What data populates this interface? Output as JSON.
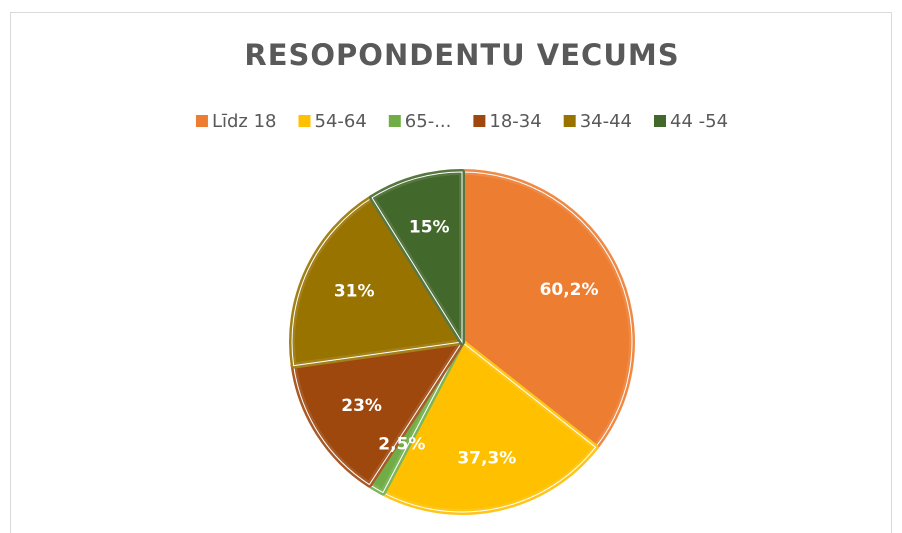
{
  "chart_data": {
    "type": "pie",
    "title": "RESOPONDENTU VECUMS",
    "categories": [
      "Līdz 18",
      "54-64",
      "65-...",
      "18-34",
      "34-44",
      "44 -54"
    ],
    "values": [
      60.2,
      37.3,
      2.5,
      23,
      31,
      15
    ],
    "value_labels": [
      "60,2%",
      "37,3%",
      "2,5%",
      "23%",
      "31%",
      "15%"
    ],
    "colors": [
      "#ed7d31",
      "#ffc000",
      "#70ad47",
      "#9e480e",
      "#997300",
      "#43682b"
    ],
    "legend": "top"
  }
}
